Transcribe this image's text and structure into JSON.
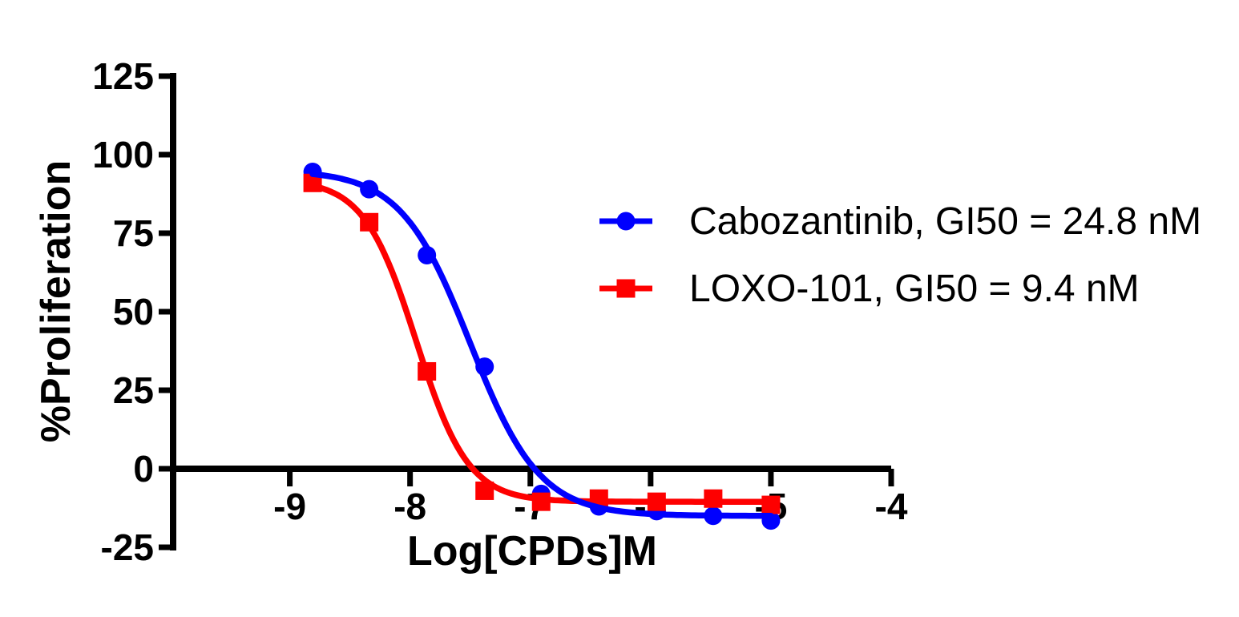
{
  "page": {
    "background": "#FFFFFF",
    "text_color": "#000000"
  },
  "chart_data": {
    "type": "scatter",
    "subtype": "dose-response-sigmoid-fit",
    "title": "",
    "xlabel": "Log[CPDs]M",
    "ylabel": "%Proliferation",
    "x_ticks": [
      -9,
      -8,
      -7,
      -6,
      -5,
      -4
    ],
    "y_ticks": [
      125,
      100,
      75,
      50,
      25,
      0,
      -25
    ],
    "xlim": [
      -9.97,
      -4.0
    ],
    "ylim": [
      -25,
      125
    ],
    "grid": false,
    "legend_position": "middle-right",
    "axis_color": "#000000",
    "series": [
      {
        "name": "Cabozantinib",
        "gi50": "24.8 nM",
        "legend_label": "Cabozantinib, GI50 = 24.8 nM",
        "color": "#0000FE",
        "marker": "circle",
        "x": [
          -8.81,
          -8.34,
          -7.86,
          -7.38,
          -6.91,
          -6.43,
          -5.95,
          -5.48,
          -5.0
        ],
        "y": [
          94.5,
          89,
          68,
          32.5,
          -8,
          -12,
          -13.5,
          -15,
          -16.5
        ],
        "fit": {
          "top": 95,
          "bottom": -15,
          "logec50": -7.5,
          "hill": 1.5
        }
      },
      {
        "name": "LOXO-101",
        "gi50": "9.4 nM",
        "legend_label": "LOXO-101, GI50 = 9.4 nM",
        "color": "#FE0000",
        "marker": "square",
        "x": [
          -8.81,
          -8.34,
          -7.86,
          -7.38,
          -6.91,
          -6.43,
          -5.95,
          -5.48,
          -5.0
        ],
        "y": [
          91,
          78.5,
          31,
          -7,
          -10.5,
          -9.5,
          -10.5,
          -9.5,
          -11.5
        ],
        "fit": {
          "top": 92,
          "bottom": -10.5,
          "logec50": -7.95,
          "hill": 2.0
        }
      }
    ]
  }
}
